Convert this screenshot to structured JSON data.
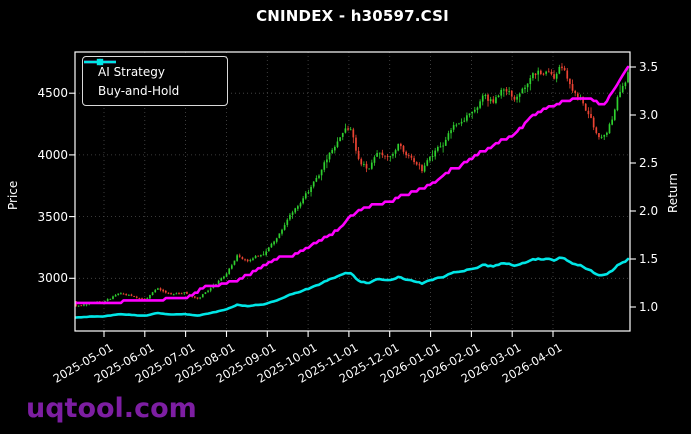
{
  "figure": {
    "title": "CNINDEX - h30597.CSI",
    "watermark": "uqtool.com",
    "background_color": "#000000",
    "foreground_color": "#ffffff"
  },
  "chart_data": {
    "type": "candlestick+line",
    "title": "CNINDEX - h30597.CSI",
    "grid": "dotted gray, on price and month ticks",
    "legend_position": "upper left",
    "x_axis": {
      "tick_labels": [
        "2025-05-01",
        "2025-06-01",
        "2025-07-01",
        "2025-08-01",
        "2025-09-01",
        "2025-10-01",
        "2025-11-01",
        "2025-12-01",
        "2026-01-01",
        "2026-02-01",
        "2026-03-01",
        "2026-04-01"
      ]
    },
    "left_axis": {
      "label": "Price",
      "ticks": [
        "3000",
        "3500",
        "4000",
        "4500"
      ],
      "range": [
        2575,
        4835
      ]
    },
    "right_axis": {
      "label": "Return",
      "ticks": [
        "1.0",
        "1.5",
        "2.0",
        "2.5",
        "3.0",
        "3.5"
      ],
      "range": [
        0.75,
        3.66
      ]
    },
    "legend": [
      {
        "label": "AI Strategy",
        "color": "#ff00ff",
        "marker": "circle"
      },
      {
        "label": "Buy-and-Hold",
        "color": "#00e6e6",
        "marker": "square"
      }
    ],
    "series": {
      "price_candles": {
        "name": "CNINDEX daily OHLC",
        "axis": "left",
        "up_color": "#2fd12f",
        "down_color": "#ec4333",
        "close_anchors": [
          [
            0.0,
            2780
          ],
          [
            0.025,
            2800
          ],
          [
            0.051,
            2810
          ],
          [
            0.076,
            2870
          ],
          [
            0.101,
            2850
          ],
          [
            0.127,
            2840
          ],
          [
            0.149,
            2910
          ],
          [
            0.17,
            2860
          ],
          [
            0.199,
            2880
          ],
          [
            0.221,
            2830
          ],
          [
            0.246,
            2930
          ],
          [
            0.274,
            3040
          ],
          [
            0.293,
            3200
          ],
          [
            0.312,
            3130
          ],
          [
            0.33,
            3180
          ],
          [
            0.348,
            3230
          ],
          [
            0.37,
            3370
          ],
          [
            0.397,
            3560
          ],
          [
            0.422,
            3700
          ],
          [
            0.442,
            3850
          ],
          [
            0.466,
            4080
          ],
          [
            0.486,
            4180
          ],
          [
            0.496,
            4220
          ],
          [
            0.511,
            3980
          ],
          [
            0.529,
            3870
          ],
          [
            0.547,
            4060
          ],
          [
            0.569,
            3990
          ],
          [
            0.587,
            4100
          ],
          [
            0.609,
            3960
          ],
          [
            0.627,
            3870
          ],
          [
            0.643,
            3990
          ],
          [
            0.665,
            4110
          ],
          [
            0.687,
            4220
          ],
          [
            0.705,
            4280
          ],
          [
            0.717,
            4350
          ],
          [
            0.737,
            4490
          ],
          [
            0.755,
            4430
          ],
          [
            0.773,
            4540
          ],
          [
            0.792,
            4460
          ],
          [
            0.812,
            4530
          ],
          [
            0.833,
            4640
          ],
          [
            0.851,
            4690
          ],
          [
            0.864,
            4610
          ],
          [
            0.877,
            4690
          ],
          [
            0.895,
            4560
          ],
          [
            0.913,
            4460
          ],
          [
            0.931,
            4310
          ],
          [
            0.949,
            4130
          ],
          [
            0.962,
            4210
          ],
          [
            0.975,
            4350
          ],
          [
            0.987,
            4540
          ],
          [
            1.0,
            4660
          ]
        ]
      },
      "ai_strategy": {
        "axis": "right",
        "color": "#ff00ff",
        "start_return": 1.04,
        "final_return": 3.5,
        "return_anchors": [
          [
            0.0,
            1.04
          ],
          [
            0.051,
            1.055
          ],
          [
            0.089,
            1.06
          ],
          [
            0.127,
            1.075
          ],
          [
            0.161,
            1.09
          ],
          [
            0.199,
            1.1
          ],
          [
            0.21,
            1.13
          ],
          [
            0.225,
            1.2
          ],
          [
            0.246,
            1.22
          ],
          [
            0.274,
            1.25
          ],
          [
            0.297,
            1.29
          ],
          [
            0.324,
            1.38
          ],
          [
            0.348,
            1.46
          ],
          [
            0.373,
            1.53
          ],
          [
            0.397,
            1.56
          ],
          [
            0.422,
            1.63
          ],
          [
            0.442,
            1.7
          ],
          [
            0.466,
            1.78
          ],
          [
            0.486,
            1.87
          ],
          [
            0.496,
            1.95
          ],
          [
            0.514,
            2.02
          ],
          [
            0.533,
            2.06
          ],
          [
            0.551,
            2.08
          ],
          [
            0.569,
            2.1
          ],
          [
            0.587,
            2.16
          ],
          [
            0.605,
            2.2
          ],
          [
            0.623,
            2.24
          ],
          [
            0.643,
            2.28
          ],
          [
            0.661,
            2.36
          ],
          [
            0.679,
            2.44
          ],
          [
            0.696,
            2.47
          ],
          [
            0.717,
            2.56
          ],
          [
            0.736,
            2.63
          ],
          [
            0.754,
            2.68
          ],
          [
            0.772,
            2.74
          ],
          [
            0.792,
            2.8
          ],
          [
            0.81,
            2.9
          ],
          [
            0.828,
            3.0
          ],
          [
            0.846,
            3.07
          ],
          [
            0.864,
            3.11
          ],
          [
            0.882,
            3.15
          ],
          [
            0.9,
            3.17
          ],
          [
            0.918,
            3.19
          ],
          [
            0.933,
            3.17
          ],
          [
            0.946,
            3.12
          ],
          [
            0.957,
            3.11
          ],
          [
            0.967,
            3.2
          ],
          [
            0.978,
            3.3
          ],
          [
            0.989,
            3.4
          ],
          [
            1.0,
            3.5
          ]
        ]
      },
      "buy_and_hold": {
        "axis": "right",
        "color": "#00e6e6",
        "normalization_price": 3113,
        "start_return": 0.89,
        "final_return": 1.49
      }
    }
  }
}
